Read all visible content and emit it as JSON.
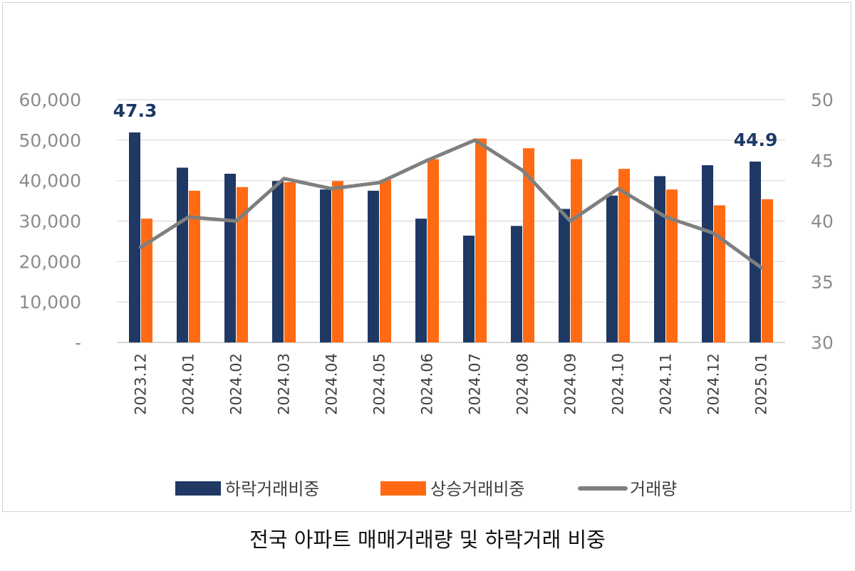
{
  "caption": "전국 아파트 매매거래량 및 하락거래 비중",
  "colors": {
    "decline": "#1f3864",
    "rise": "#ff6a13",
    "volume": "#7f7f7f"
  },
  "chart_data": {
    "type": "bar",
    "categories": [
      "2023.12",
      "2024.01",
      "2024.02",
      "2024.03",
      "2024.04",
      "2024.05",
      "2024.06",
      "2024.07",
      "2024.08",
      "2024.09",
      "2024.10",
      "2024.11",
      "2024.12",
      "2025.01"
    ],
    "left_axis": {
      "ticks": [
        0,
        10000,
        20000,
        30000,
        40000,
        50000,
        60000
      ],
      "tick_labels": [
        "-",
        "10,000",
        "20,000",
        "30,000",
        "40,000",
        "50,000",
        "60,000"
      ],
      "ylim": [
        0,
        60000
      ]
    },
    "right_axis": {
      "ticks": [
        30,
        35,
        40,
        45,
        50
      ],
      "tick_labels": [
        "30",
        "35",
        "40",
        "45",
        "50"
      ],
      "ylim": [
        30,
        50
      ]
    },
    "series": [
      {
        "name": "하락거래비중",
        "type": "bar",
        "axis": "right",
        "values": [
          47.3,
          44.4,
          43.9,
          43.3,
          42.6,
          42.5,
          40.2,
          38.8,
          39.6,
          41.0,
          42.1,
          43.7,
          44.6,
          44.9
        ]
      },
      {
        "name": "상승거래비중",
        "type": "bar",
        "axis": "right",
        "values": [
          40.2,
          42.5,
          42.8,
          43.2,
          43.3,
          43.4,
          45.1,
          46.8,
          46.0,
          45.1,
          44.3,
          42.6,
          41.3,
          41.8
        ]
      },
      {
        "name": "거래량",
        "type": "line",
        "axis": "left",
        "values": [
          23500,
          31000,
          30000,
          40500,
          38000,
          39500,
          45000,
          50000,
          42500,
          30000,
          38000,
          31000,
          27000,
          18500
        ]
      }
    ],
    "annotations": [
      {
        "category": "2023.12",
        "series": "하락거래비중",
        "text": "47.3"
      },
      {
        "category": "2025.01",
        "series": "하락거래비중",
        "text": "44.9"
      }
    ],
    "legend_position": "bottom",
    "grid": true
  }
}
